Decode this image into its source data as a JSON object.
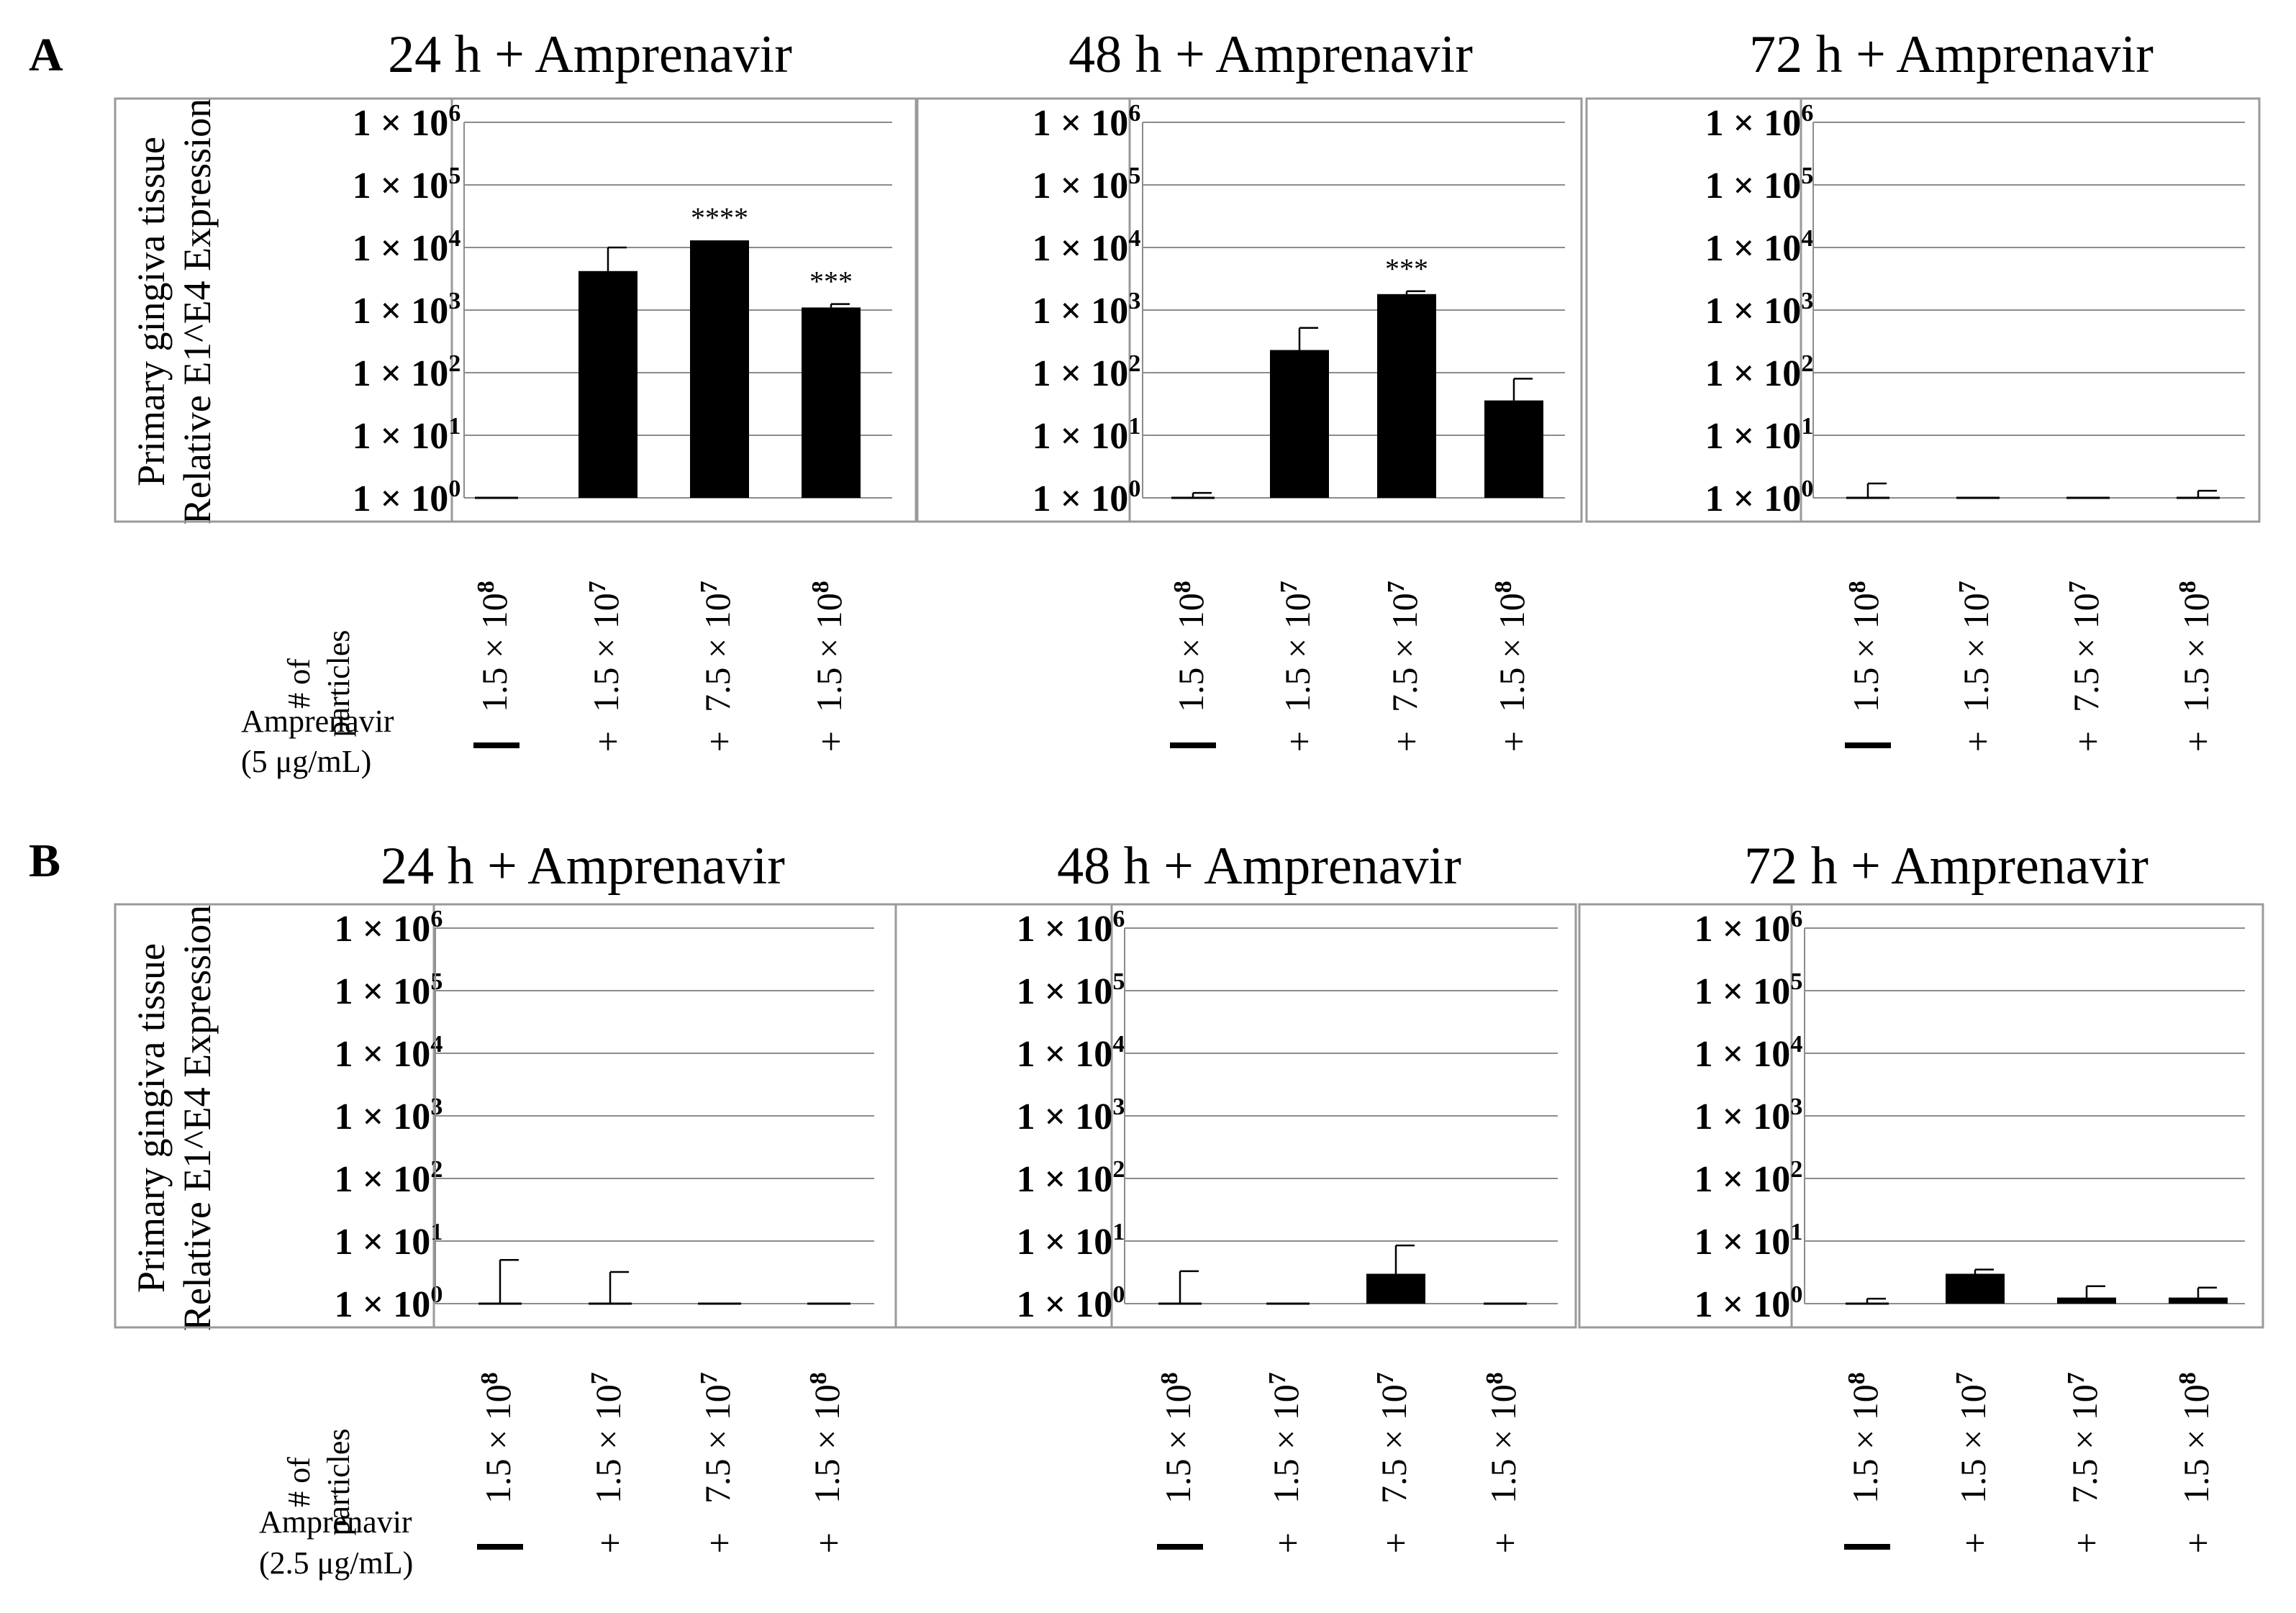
{
  "panels": [
    {
      "letter": "A",
      "ylabel_line1": "Primary gingiva tissue",
      "ylabel_line2": "Relative E1^E4 Expression",
      "particles_label_line1": "# of",
      "particles_label_line2": "particles",
      "drug_label_line1": "Amprenavir",
      "drug_label_line2": "(5 μg/mL)"
    },
    {
      "letter": "B",
      "ylabel_line1": "Primary gingiva tissue",
      "ylabel_line2": "Relative E1^E4 Expression",
      "particles_label_line1": "# of",
      "particles_label_line2": "particles",
      "drug_label_line1": "Amprenavir",
      "drug_label_line2": "(2.5 μg/mL)"
    }
  ],
  "y_ticks": [
    {
      "base": "1 × 10",
      "exp": "6"
    },
    {
      "base": "1 × 10",
      "exp": "5"
    },
    {
      "base": "1 × 10",
      "exp": "4"
    },
    {
      "base": "1 × 10",
      "exp": "3"
    },
    {
      "base": "1 × 10",
      "exp": "2"
    },
    {
      "base": "1 × 10",
      "exp": "1"
    },
    {
      "base": "1 × 10",
      "exp": "0"
    }
  ],
  "chart_data": [
    {
      "type": "bar",
      "panel": "A",
      "title": "24 h + Amprenavir",
      "yscale": "log",
      "ylim": [
        1,
        1000000
      ],
      "grid": true,
      "categories": [
        "1.5 × 10^8",
        "1.5 × 10^7",
        "7.5 × 10^7",
        "1.5 × 10^8"
      ],
      "x_labels": [
        {
          "base": "1.5 × 10",
          "exp": "8"
        },
        {
          "base": "1.5 × 10",
          "exp": "7"
        },
        {
          "base": "7.5 × 10",
          "exp": "7"
        },
        {
          "base": "1.5 × 10",
          "exp": "8"
        }
      ],
      "amprenavir": [
        "—",
        "+",
        "+",
        "+"
      ],
      "values": [
        1,
        4200,
        13000,
        1100
      ],
      "error_upper": [
        1,
        10000,
        13000,
        1250
      ],
      "significance": [
        "",
        "",
        "****",
        "***"
      ]
    },
    {
      "type": "bar",
      "panel": "A",
      "title": "48 h + Amprenavir",
      "yscale": "log",
      "ylim": [
        1,
        1000000
      ],
      "grid": true,
      "categories": [
        "1.5 × 10^8",
        "1.5 × 10^7",
        "7.5 × 10^7",
        "1.5 × 10^8"
      ],
      "x_labels": [
        {
          "base": "1.5 × 10",
          "exp": "8"
        },
        {
          "base": "1.5 × 10",
          "exp": "7"
        },
        {
          "base": "7.5 × 10",
          "exp": "7"
        },
        {
          "base": "1.5 × 10",
          "exp": "8"
        }
      ],
      "amprenavir": [
        "—",
        "+",
        "+",
        "+"
      ],
      "values": [
        1,
        230,
        1800,
        36
      ],
      "error_upper": [
        1.2,
        520,
        2000,
        80
      ],
      "significance": [
        "",
        "",
        "***",
        ""
      ]
    },
    {
      "type": "bar",
      "panel": "A",
      "title": "72 h + Amprenavir",
      "yscale": "log",
      "ylim": [
        1,
        1000000
      ],
      "grid": true,
      "categories": [
        "1.5 × 10^8",
        "1.5 × 10^7",
        "7.5 × 10^7",
        "1.5 × 10^8"
      ],
      "x_labels": [
        {
          "base": "1.5 × 10",
          "exp": "8"
        },
        {
          "base": "1.5 × 10",
          "exp": "7"
        },
        {
          "base": "7.5 × 10",
          "exp": "7"
        },
        {
          "base": "1.5 × 10",
          "exp": "8"
        }
      ],
      "amprenavir": [
        "—",
        "+",
        "+",
        "+"
      ],
      "values": [
        1,
        1,
        1,
        1
      ],
      "error_upper": [
        1.7,
        1,
        1,
        1.3
      ],
      "significance": [
        "",
        "",
        "",
        ""
      ]
    },
    {
      "type": "bar",
      "panel": "B",
      "title": "24 h + Amprenavir",
      "yscale": "log",
      "ylim": [
        1,
        1000000
      ],
      "grid": true,
      "categories": [
        "1.5 × 10^8",
        "1.5 × 10^7",
        "7.5 × 10^7",
        "1.5 × 10^8"
      ],
      "x_labels": [
        {
          "base": "1.5 × 10",
          "exp": "8"
        },
        {
          "base": "1.5 × 10",
          "exp": "7"
        },
        {
          "base": "7.5 × 10",
          "exp": "7"
        },
        {
          "base": "1.5 × 10",
          "exp": "8"
        }
      ],
      "amprenavir": [
        "—",
        "+",
        "+",
        "+"
      ],
      "values": [
        1,
        1,
        1,
        1
      ],
      "error_upper": [
        5,
        3.2,
        1,
        1
      ],
      "significance": [
        "",
        "",
        "",
        ""
      ]
    },
    {
      "type": "bar",
      "panel": "B",
      "title": "48 h + Amprenavir",
      "yscale": "log",
      "ylim": [
        1,
        1000000
      ],
      "grid": true,
      "categories": [
        "1.5 × 10^8",
        "1.5 × 10^7",
        "7.5 × 10^7",
        "1.5 × 10^8"
      ],
      "x_labels": [
        {
          "base": "1.5 × 10",
          "exp": "8"
        },
        {
          "base": "1.5 × 10",
          "exp": "7"
        },
        {
          "base": "7.5 × 10",
          "exp": "7"
        },
        {
          "base": "1.5 × 10",
          "exp": "8"
        }
      ],
      "amprenavir": [
        "—",
        "+",
        "+",
        "+"
      ],
      "values": [
        1,
        1,
        3,
        1
      ],
      "error_upper": [
        3.3,
        1,
        8.5,
        1
      ],
      "significance": [
        "",
        "",
        "",
        ""
      ]
    },
    {
      "type": "bar",
      "panel": "B",
      "title": "72 h + Amprenavir",
      "yscale": "log",
      "ylim": [
        1,
        1000000
      ],
      "grid": true,
      "categories": [
        "1.5 × 10^8",
        "1.5 × 10^7",
        "7.5 × 10^7",
        "1.5 × 10^8"
      ],
      "x_labels": [
        {
          "base": "1.5 × 10",
          "exp": "8"
        },
        {
          "base": "1.5 × 10",
          "exp": "7"
        },
        {
          "base": "7.5 × 10",
          "exp": "7"
        },
        {
          "base": "1.5 × 10",
          "exp": "8"
        }
      ],
      "amprenavir": [
        "—",
        "+",
        "+",
        "+"
      ],
      "values": [
        1,
        3,
        1.25,
        1.25
      ],
      "error_upper": [
        1.2,
        3.5,
        1.9,
        1.8
      ],
      "significance": [
        "",
        "",
        "",
        ""
      ]
    }
  ]
}
